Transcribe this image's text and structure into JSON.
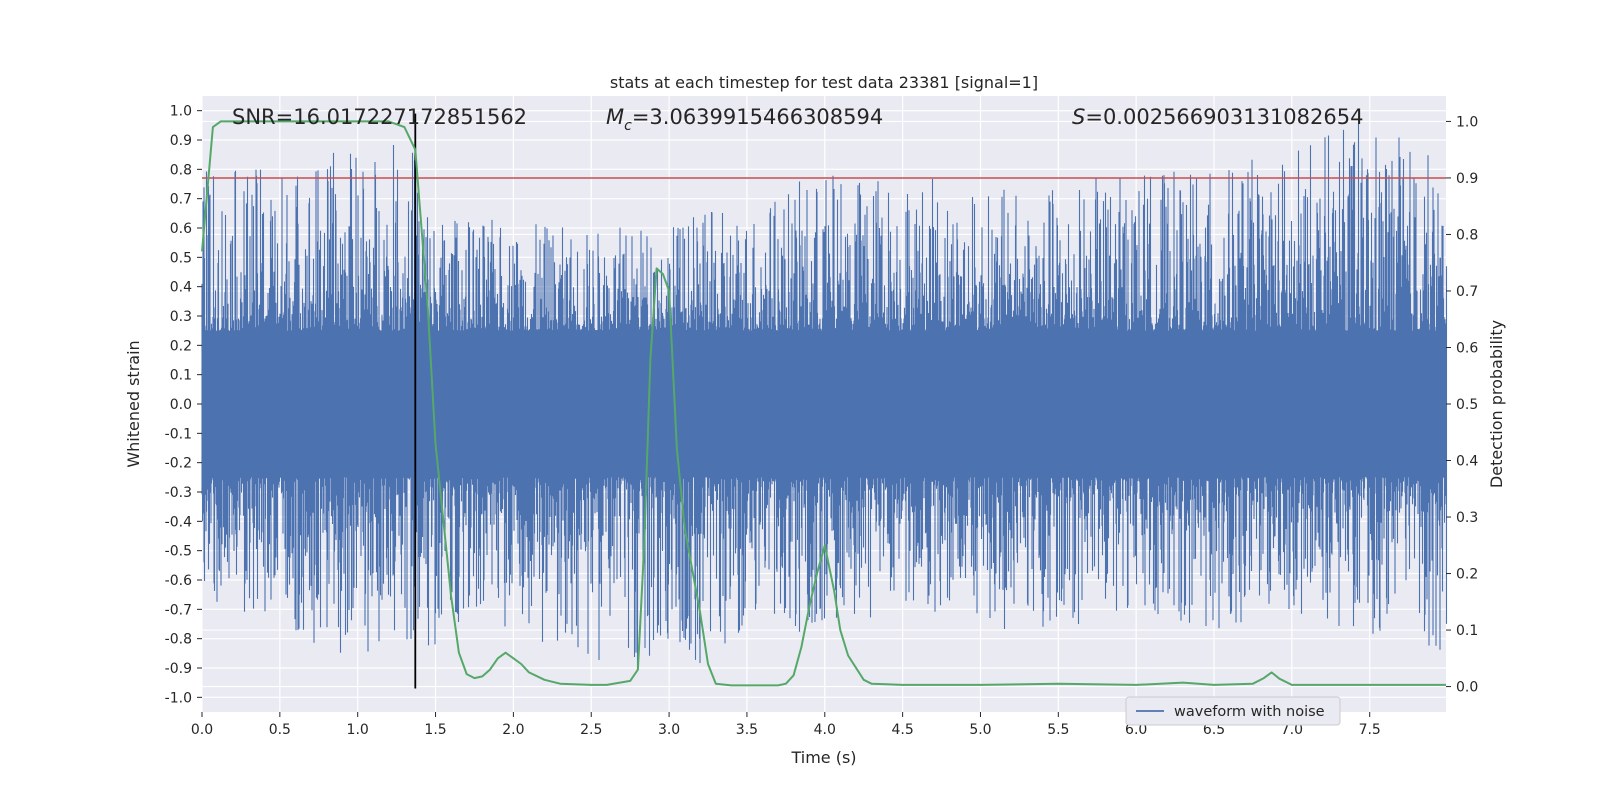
{
  "chart_data": {
    "type": "line",
    "title": "stats at each timestep for test data 23381 [signal=1]",
    "xlabel": "Time (s)",
    "ylabel": "Whitened strain",
    "y2label": "Detection probability",
    "xlim": [
      0.0,
      7.99
    ],
    "ylim": [
      -1.05,
      1.05
    ],
    "y2lim": [
      -0.045,
      1.045
    ],
    "x_ticks": [
      "0.0",
      "0.5",
      "1.0",
      "1.5",
      "2.0",
      "2.5",
      "3.0",
      "3.5",
      "4.0",
      "4.5",
      "5.0",
      "5.5",
      "6.0",
      "6.5",
      "7.0",
      "7.5"
    ],
    "y_ticks": [
      "1.0",
      "0.9",
      "0.8",
      "0.7",
      "0.6",
      "0.5",
      "0.4",
      "0.3",
      "0.2",
      "0.1",
      "0.0",
      "-0.1",
      "-0.2",
      "-0.3",
      "-0.4",
      "-0.5",
      "-0.6",
      "-0.7",
      "-0.8",
      "-0.9",
      "-1.0"
    ],
    "y2_ticks": [
      "1.0",
      "0.9",
      "0.8",
      "0.7",
      "0.6",
      "0.5",
      "0.4",
      "0.3",
      "0.2",
      "0.1",
      "0.0"
    ],
    "annotations": {
      "snr": "SNR=16.017227172851562",
      "mc_symbol": "M",
      "mc_sub": "c",
      "mc_value": "=3.0639915466308594",
      "s_symbol": "S",
      "s_value": "=0.002566903131082654"
    },
    "legend": {
      "label": "waveform with noise",
      "placement": "bottom-right"
    },
    "threshold_line": {
      "y2": 0.9,
      "color": "#c44e52"
    },
    "event_marker": {
      "x": 1.37,
      "color": "#000000"
    },
    "series": [
      {
        "name": "waveform with noise",
        "axis": "left",
        "color": "#4c72b0",
        "envelope": {
          "x": [
            0.0,
            0.5,
            1.0,
            1.37,
            1.5,
            2.0,
            2.5,
            3.0,
            3.5,
            4.0,
            4.5,
            5.0,
            5.5,
            6.0,
            6.5,
            7.0,
            7.5,
            7.99
          ],
          "max": [
            0.8,
            0.82,
            0.88,
            0.9,
            0.65,
            0.62,
            0.6,
            0.63,
            0.68,
            0.8,
            0.8,
            0.73,
            0.75,
            0.8,
            0.8,
            0.88,
            0.99,
            0.82
          ],
          "min": [
            -0.7,
            -0.75,
            -0.9,
            -0.82,
            -0.86,
            -0.82,
            -0.88,
            -0.95,
            -0.82,
            -0.78,
            -0.72,
            -0.78,
            -0.77,
            -0.7,
            -0.78,
            -0.75,
            -0.78,
            -0.86
          ]
        }
      },
      {
        "name": "detection probability",
        "axis": "right",
        "color": "#55a868",
        "x": [
          0.0,
          0.07,
          0.12,
          0.2,
          0.3,
          0.5,
          0.8,
          1.0,
          1.2,
          1.3,
          1.37,
          1.45,
          1.5,
          1.6,
          1.65,
          1.7,
          1.75,
          1.8,
          1.85,
          1.9,
          1.95,
          2.0,
          2.05,
          2.1,
          2.2,
          2.3,
          2.5,
          2.6,
          2.75,
          2.8,
          2.84,
          2.88,
          2.92,
          2.96,
          3.0,
          3.05,
          3.1,
          3.2,
          3.25,
          3.3,
          3.4,
          3.5,
          3.7,
          3.75,
          3.8,
          3.85,
          3.9,
          3.95,
          4.0,
          4.03,
          4.06,
          4.1,
          4.15,
          4.25,
          4.3,
          4.5,
          5.0,
          5.5,
          6.0,
          6.3,
          6.5,
          6.75,
          6.82,
          6.87,
          6.92,
          7.0,
          7.5,
          7.99
        ],
        "y": [
          0.77,
          0.99,
          1.0,
          1.0,
          1.0,
          1.0,
          1.0,
          1.0,
          1.0,
          0.99,
          0.95,
          0.67,
          0.43,
          0.16,
          0.06,
          0.022,
          0.015,
          0.018,
          0.03,
          0.05,
          0.06,
          0.05,
          0.04,
          0.025,
          0.012,
          0.005,
          0.003,
          0.003,
          0.01,
          0.03,
          0.25,
          0.58,
          0.74,
          0.73,
          0.7,
          0.42,
          0.28,
          0.13,
          0.04,
          0.005,
          0.002,
          0.002,
          0.002,
          0.005,
          0.02,
          0.07,
          0.14,
          0.2,
          0.25,
          0.21,
          0.17,
          0.1,
          0.055,
          0.012,
          0.005,
          0.003,
          0.003,
          0.005,
          0.003,
          0.007,
          0.003,
          0.005,
          0.015,
          0.025,
          0.014,
          0.003,
          0.003,
          0.003
        ]
      }
    ]
  }
}
